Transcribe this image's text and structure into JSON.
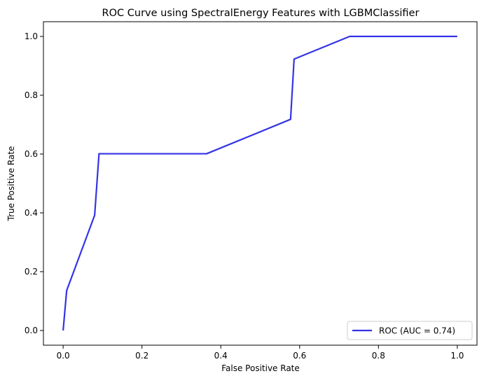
{
  "chart_data": {
    "type": "line",
    "title": "ROC Curve using SpectralEnergy Features with LGBMClassifier",
    "xlabel": "False Positive Rate",
    "ylabel": "True Positive Rate",
    "xlim": [
      -0.05,
      1.05
    ],
    "ylim": [
      -0.05,
      1.05
    ],
    "xticks": [
      0.0,
      0.2,
      0.4,
      0.6,
      0.8,
      1.0
    ],
    "xtick_labels": [
      "0.0",
      "0.2",
      "0.4",
      "0.6",
      "0.8",
      "1.0"
    ],
    "yticks": [
      0.0,
      0.2,
      0.4,
      0.6,
      0.8,
      1.0
    ],
    "ytick_labels": [
      "0.0",
      "0.2",
      "0.4",
      "0.6",
      "0.8",
      "1.0"
    ],
    "grid": false,
    "legend_position": "lower-right",
    "series": [
      {
        "name": "ROC (AUC = 0.74)",
        "color": "#3434e6",
        "x": [
          0.0,
          0.009,
          0.08,
          0.091,
          0.364,
          0.577,
          0.586,
          0.727,
          1.0
        ],
        "y": [
          0.0,
          0.136,
          0.392,
          0.601,
          0.601,
          0.718,
          0.923,
          1.0,
          1.0
        ]
      }
    ]
  }
}
